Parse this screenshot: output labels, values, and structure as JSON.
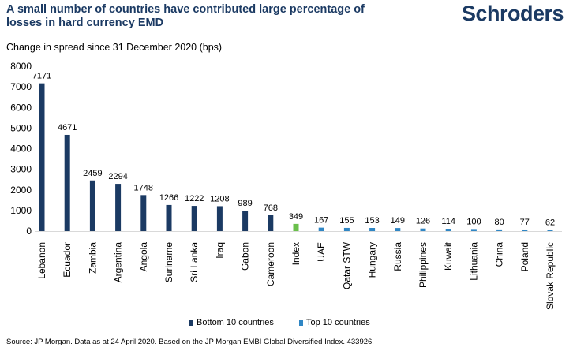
{
  "header": {
    "title": "A small number of countries have contributed large percentage of losses in hard currency EMD",
    "logo_text": "Schroders"
  },
  "chart_data": {
    "type": "bar",
    "title": "A small number of countries have contributed large percentage of losses in hard currency EMD",
    "subtitle": "Change in spread since 31 December 2020 (bps)",
    "xlabel": "",
    "ylabel": "",
    "ylim": [
      0,
      8000
    ],
    "yticks": [
      0,
      1000,
      2000,
      3000,
      4000,
      5000,
      6000,
      7000,
      8000
    ],
    "grid": false,
    "categories": [
      "Lebanon",
      "Ecuador",
      "Zambia",
      "Argentina",
      "Angola",
      "Suriname",
      "Sri Lanka",
      "Iraq",
      "Gabon",
      "Cameroon",
      "Index",
      "UAE",
      "Qatar STW",
      "Hungary",
      "Russia",
      "Philippines",
      "Kuwait",
      "Lithuania",
      "China",
      "Poland",
      "Slovak Republic"
    ],
    "values": [
      7171,
      4671,
      2459,
      2294,
      1748,
      1266,
      1222,
      1208,
      989,
      768,
      349,
      167,
      155,
      153,
      149,
      126,
      114,
      100,
      80,
      77,
      62
    ],
    "groups": [
      "bottom",
      "bottom",
      "bottom",
      "bottom",
      "bottom",
      "bottom",
      "bottom",
      "bottom",
      "bottom",
      "bottom",
      "index",
      "top",
      "top",
      "top",
      "top",
      "top",
      "top",
      "top",
      "top",
      "top",
      "top"
    ],
    "colors": {
      "bottom": "#1b3a63",
      "index": "#6abf4b",
      "top": "#2f86c4"
    },
    "legend": [
      {
        "label": "Bottom 10 countries",
        "group": "bottom"
      },
      {
        "label": "Top 10 countries",
        "group": "top"
      }
    ],
    "legend_position": "bottom"
  },
  "footer": {
    "source": "Source: JP Morgan. Data as at 24 April 2020. Based on the JP Morgan EMBI Global Diversified Index. 433926."
  }
}
